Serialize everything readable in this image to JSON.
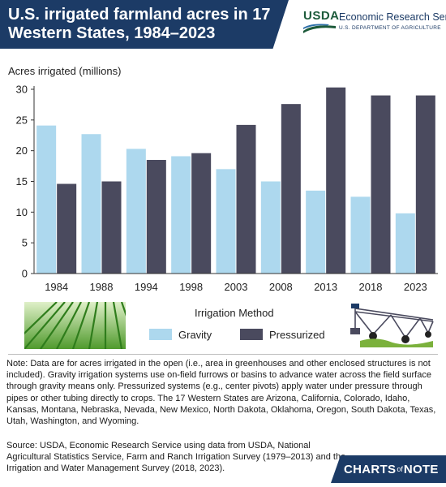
{
  "header": {
    "title": "U.S. irrigated farmland acres in 17 Western States, 1984–2023",
    "logo_text": "USDA",
    "agency": "Economic Research Service",
    "department": "U.S. DEPARTMENT OF AGRICULTURE"
  },
  "legend": {
    "title": "Irrigation Method",
    "gravity_label": "Gravity",
    "pressurized_label": "Pressurized"
  },
  "colors": {
    "gravity": "#add8ee",
    "pressurized": "#4a4a5e",
    "header": "#1c3b66",
    "usda_green": "#1c5a3a"
  },
  "icons": {
    "field": "crop-field-photo-icon",
    "pivot": "center-pivot-irrigation-icon"
  },
  "chart_data": {
    "type": "bar",
    "title": "",
    "ylabel": "Acres irrigated (millions)",
    "xlabel": "",
    "ylim": [
      0,
      30
    ],
    "yticks": [
      0,
      5,
      10,
      15,
      20,
      25,
      30
    ],
    "grid": false,
    "categories": [
      "1984",
      "1988",
      "1994",
      "1998",
      "2003",
      "2008",
      "2013",
      "2018",
      "2023"
    ],
    "series": [
      {
        "name": "Gravity",
        "values": [
          24.1,
          22.7,
          20.3,
          19.1,
          17.0,
          15.0,
          13.5,
          12.5,
          9.8
        ]
      },
      {
        "name": "Pressurized",
        "values": [
          14.6,
          15.0,
          18.5,
          19.6,
          24.2,
          27.6,
          30.3,
          29.0,
          29.0
        ]
      }
    ]
  },
  "note": "Note: Data are for acres irrigated in the open (i.e., area in greenhouses and other enclosed structures is not included). Gravity irrigation systems use on-field furrows or basins to advance water across the field surface through gravity means only. Pressurized systems (e.g., center pivots) apply water under pressure through pipes or other tubing directly to crops. The 17 Western States are Arizona, California, Colorado, Idaho, Kansas, Montana, Nebraska, Nevada, New Mexico, North Dakota, Oklahoma, Oregon, South Dakota, Texas, Utah, Washington, and Wyoming.",
  "source": "Source: USDA, Economic Research Service using data from USDA, National Agricultural Statistics Service, Farm and Ranch Irrigation Survey (1979–2013) and the Irrigation and Water Management Survey (2018, 2023).",
  "footer_logo": {
    "charts": "CHARTS",
    "of": "of",
    "note": "NOTE"
  }
}
